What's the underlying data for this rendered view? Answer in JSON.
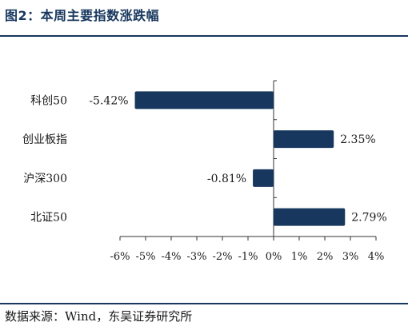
{
  "figure": {
    "title": "图2：本周主要指数涨跌幅",
    "source": "数据来源：Wind，东吴证券研究所"
  },
  "chart_data": {
    "type": "bar",
    "orientation": "horizontal",
    "categories": [
      "科创50",
      "创业板指",
      "沪深300",
      "北证50"
    ],
    "values": [
      -5.42,
      2.35,
      -0.81,
      2.79
    ],
    "value_labels": [
      "-5.42%",
      "2.35%",
      "-0.81%",
      "2.79%"
    ],
    "xlim": [
      -6,
      4
    ],
    "xticks": [
      -6,
      -5,
      -4,
      -3,
      -2,
      -1,
      0,
      1,
      2,
      3,
      4
    ],
    "xtick_labels": [
      "-6%",
      "-5%",
      "-4%",
      "-3%",
      "-2%",
      "-1%",
      "0%",
      "1%",
      "2%",
      "3%",
      "4%"
    ],
    "bar_color": "#17375e",
    "grid": false,
    "legend": "none"
  }
}
